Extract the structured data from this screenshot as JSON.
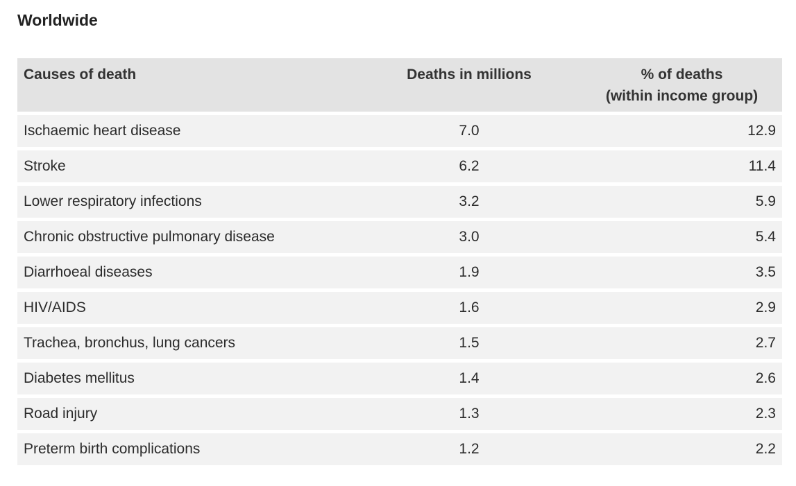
{
  "heading": "Worldwide",
  "table": {
    "headers": {
      "cause": "Causes of death",
      "deaths": "Deaths in millions",
      "pct_line1": "% of deaths",
      "pct_line2": "(within income group)"
    },
    "rows": [
      {
        "cause": "Ischaemic heart disease",
        "deaths": "7.0",
        "pct": "12.9"
      },
      {
        "cause": "Stroke",
        "deaths": "6.2",
        "pct": "11.4"
      },
      {
        "cause": "Lower respiratory infections",
        "deaths": "3.2",
        "pct": "5.9"
      },
      {
        "cause": "Chronic obstructive pulmonary disease",
        "deaths": "3.0",
        "pct": "5.4"
      },
      {
        "cause": "Diarrhoeal diseases",
        "deaths": "1.9",
        "pct": "3.5"
      },
      {
        "cause": "HIV/AIDS",
        "deaths": "1.6",
        "pct": "2.9"
      },
      {
        "cause": "Trachea, bronchus, lung cancers",
        "deaths": "1.5",
        "pct": "2.7"
      },
      {
        "cause": "Diabetes mellitus",
        "deaths": "1.4",
        "pct": "2.6"
      },
      {
        "cause": "Road injury",
        "deaths": "1.3",
        "pct": "2.3"
      },
      {
        "cause": "Preterm birth complications",
        "deaths": "1.2",
        "pct": "2.2"
      }
    ]
  },
  "colors": {
    "header_bg": "#e3e3e3",
    "row_bg": "#f2f2f2",
    "text": "#2b2b2b"
  }
}
